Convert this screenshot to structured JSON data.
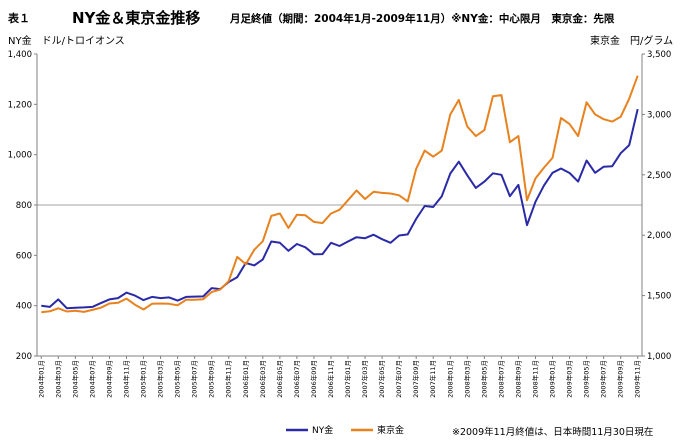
{
  "header": {
    "table_no": "表１",
    "title": "NY金＆東京金推移",
    "subtitle": "月足終値（期間：2004年1月-2009年11月）※NY金：中心限月　東京金：先限",
    "left_unit": "NY金　ドル/トロイオンス",
    "right_unit": "東京金　円/グラム",
    "footnote": "※2009年11月終値は、日本時間11月30日現在"
  },
  "colors": {
    "ny": "#2a2aa8",
    "tokyo": "#e8821e",
    "grid": "#a0a0a0",
    "axis": "#808080"
  },
  "chart_data": {
    "type": "line",
    "title": "NY金＆東京金推移",
    "y_left": {
      "label": "NY金　ドル/トロイオンス",
      "lim": [
        200,
        1400
      ],
      "ticks": [
        "200",
        "400",
        "600",
        "800",
        "1,000",
        "1,200",
        "1,400"
      ]
    },
    "y_right": {
      "label": "東京金　円/グラム",
      "lim": [
        1000,
        3500
      ],
      "ticks": [
        "1,000",
        "1,500",
        "2,000",
        "2,500",
        "3,000",
        "3,500"
      ]
    },
    "gridlines_left": [
      800
    ],
    "x_labels": [
      "2004年01月",
      "2004年03月",
      "2004年05月",
      "2004年07月",
      "2004年09月",
      "2004年11月",
      "2005年01月",
      "2005年03月",
      "2005年05月",
      "2005年07月",
      "2005年09月",
      "2005年11月",
      "2006年01月",
      "2006年03月",
      "2006年05月",
      "2006年07月",
      "2006年09月",
      "2006年11月",
      "2007年01月",
      "2007年03月",
      "2007年05月",
      "2007年07月",
      "2007年09月",
      "2007年11月",
      "2008年01月",
      "2008年03月",
      "2008年05月",
      "2008年07月",
      "2008年09月",
      "2008年11月",
      "2009年01月",
      "2009年03月",
      "2009年05月",
      "2009年07月",
      "2009年09月",
      "2009年11月"
    ],
    "months": 71,
    "legend_position": "bottom",
    "series": [
      {
        "name": "NY金",
        "axis": "left",
        "color": "#2a2aa8",
        "values": [
          400,
          395,
          425,
          390,
          392,
          393,
          395,
          410,
          425,
          430,
          452,
          440,
          422,
          435,
          430,
          433,
          420,
          435,
          436,
          437,
          470,
          466,
          494,
          513,
          570,
          560,
          584,
          655,
          650,
          618,
          645,
          632,
          604,
          605,
          650,
          637,
          655,
          672,
          668,
          682,
          664,
          650,
          679,
          683,
          745,
          796,
          792,
          835,
          925,
          972,
          918,
          868,
          893,
          926,
          920,
          835,
          880,
          720,
          813,
          878,
          928,
          945,
          927,
          893,
          977,
          928,
          952,
          954,
          1006,
          1038,
          1181
        ]
      },
      {
        "name": "東京金",
        "axis": "right",
        "color": "#e8821e",
        "values": [
          1362,
          1370,
          1395,
          1368,
          1375,
          1365,
          1382,
          1400,
          1435,
          1440,
          1475,
          1425,
          1385,
          1432,
          1435,
          1432,
          1420,
          1465,
          1465,
          1470,
          1530,
          1550,
          1620,
          1820,
          1760,
          1880,
          1950,
          2160,
          2180,
          2060,
          2170,
          2165,
          2110,
          2100,
          2180,
          2210,
          2290,
          2370,
          2300,
          2360,
          2350,
          2345,
          2330,
          2280,
          2550,
          2700,
          2650,
          2700,
          3000,
          3120,
          2900,
          2820,
          2870,
          3150,
          3160,
          2770,
          2820,
          2290,
          2470,
          2560,
          2640,
          2970,
          2920,
          2820,
          3100,
          3000,
          2960,
          2940,
          2980,
          3130,
          3320
        ]
      }
    ]
  }
}
